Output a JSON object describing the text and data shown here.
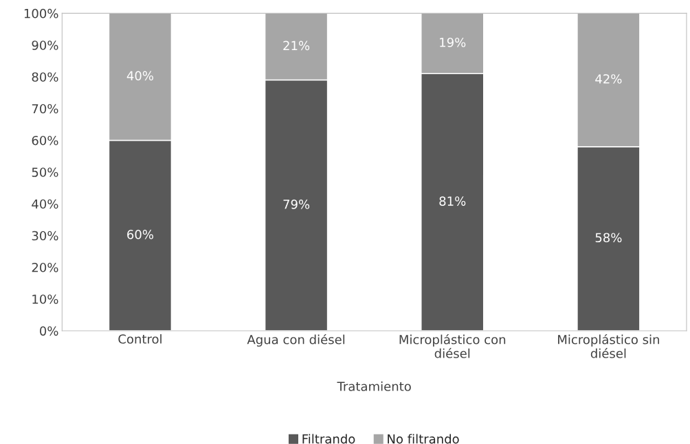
{
  "chart_data": {
    "type": "bar",
    "stacked": true,
    "categories": [
      "Control",
      "Agua con diésel",
      "Microplástico con diésel",
      "Microplástico sin diésel"
    ],
    "series": [
      {
        "name": "Filtrando",
        "color": "#595959",
        "values": [
          60,
          79,
          81,
          58
        ],
        "value_labels": [
          "60%",
          "79%",
          "81%",
          "58%"
        ]
      },
      {
        "name": "No filtrando",
        "color": "#a6a6a6",
        "values": [
          40,
          21,
          19,
          42
        ],
        "value_labels": [
          "40%",
          "21%",
          "19%",
          "42%"
        ]
      }
    ],
    "xlabel": "Tratamiento",
    "ylim": [
      0,
      100
    ],
    "yticks": [
      {
        "value": 0,
        "label": "0%"
      },
      {
        "value": 10,
        "label": "10%"
      },
      {
        "value": 20,
        "label": "20%"
      },
      {
        "value": 30,
        "label": "30%"
      },
      {
        "value": 40,
        "label": "40%"
      },
      {
        "value": 50,
        "label": "50%"
      },
      {
        "value": 60,
        "label": "60%"
      },
      {
        "value": 70,
        "label": "70%"
      },
      {
        "value": 80,
        "label": "80%"
      },
      {
        "value": 90,
        "label": "90%"
      },
      {
        "value": 100,
        "label": "100%"
      }
    ],
    "grid": false,
    "legend": "bottom"
  }
}
